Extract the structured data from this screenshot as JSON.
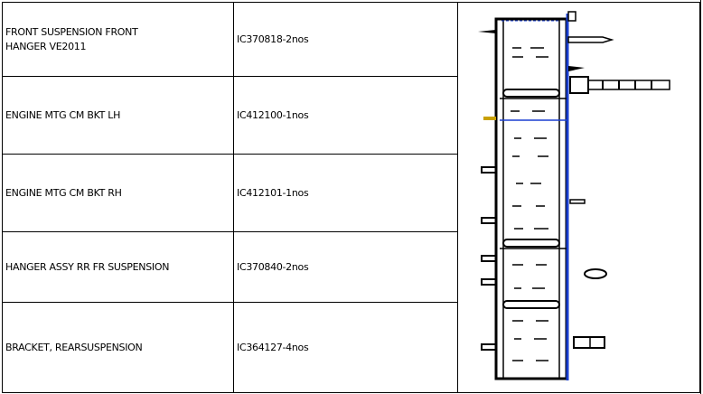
{
  "parts_table": {
    "rows": [
      {
        "description": "FRONT SUSPENSION FRONT\n HANGER VE2011",
        "part_qty": "IC370818-2nos"
      },
      {
        "description": "ENGINE MTG CM BKT LH",
        "part_qty": "IC412100-1nos"
      },
      {
        "description": "ENGINE MTG CM BKT RH",
        "part_qty": "IC412101-1nos"
      },
      {
        "description": "HANGER ASSY RR FR SUSPENSION",
        "part_qty": "IC370840-2nos"
      },
      {
        "description": "BRACKET, REARSUSPENSION",
        "part_qty": "IC364127-4nos"
      }
    ]
  },
  "drawing": {
    "icon": "chassis-frame-drawing",
    "accent_color": "#1a3fd0"
  }
}
